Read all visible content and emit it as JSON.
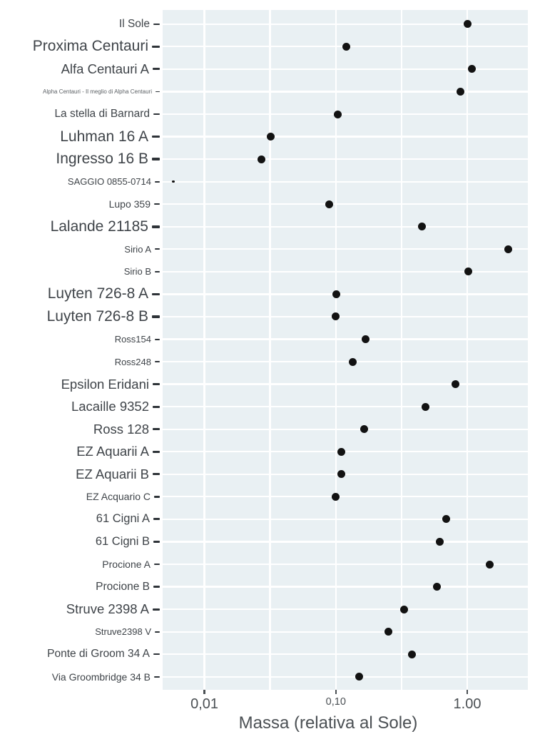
{
  "chart_data": {
    "type": "scatter",
    "variant": "horizontal-dot-plot",
    "title": "",
    "xlabel": "Massa (relativa al Sole)",
    "ylabel": "",
    "x_scale": "log10",
    "xlim": [
      0.0048,
      2.9
    ],
    "grid": true,
    "legend": false,
    "x_ticks": [
      {
        "label": "0,01",
        "value": 0.01,
        "label_size": "l"
      },
      {
        "label": "0,10",
        "value": 0.1,
        "label_size": "s"
      },
      {
        "label": "1.00",
        "value": 1.0,
        "label_size": "l"
      }
    ],
    "x_minor_grid_values": [
      0.0316,
      0.316
    ],
    "rows": [
      {
        "label": "Il Sole",
        "mass": 1.0,
        "label_size": "m",
        "point_size": "normal"
      },
      {
        "label": "Proxima Centauri",
        "mass": 0.12,
        "label_size": "xl",
        "point_size": "normal"
      },
      {
        "label": "Alfa Centauri A",
        "mass": 1.09,
        "label_size": "l",
        "point_size": "normal"
      },
      {
        "label": "Alpha Centauri - Il meglio di Alpha Centauri",
        "mass": 0.89,
        "label_size": "xs",
        "point_size": "normal"
      },
      {
        "label": "La stella di Barnard",
        "mass": 0.103,
        "label_size": "m",
        "point_size": "normal"
      },
      {
        "label": "Luhman 16 A",
        "mass": 0.032,
        "label_size": "xl",
        "point_size": "normal"
      },
      {
        "label": "Ingresso 16 B",
        "mass": 0.027,
        "label_size": "xl",
        "point_size": "normal"
      },
      {
        "label": "SAGGIO 0855-0714",
        "mass": 0.0058,
        "label_size": "s",
        "point_size": "small"
      },
      {
        "label": "Lupo 359",
        "mass": 0.089,
        "label_size": "sm",
        "point_size": "normal"
      },
      {
        "label": "Lalande 21185",
        "mass": 0.45,
        "label_size": "xl",
        "point_size": "normal"
      },
      {
        "label": "Sirio A",
        "mass": 2.05,
        "label_size": "s",
        "point_size": "normal"
      },
      {
        "label": "Sirio B",
        "mass": 1.02,
        "label_size": "s",
        "point_size": "normal"
      },
      {
        "label": "Luyten 726-8 A",
        "mass": 0.101,
        "label_size": "xl",
        "point_size": "normal"
      },
      {
        "label": "Luyten 726-8 B",
        "mass": 0.1,
        "label_size": "xl",
        "point_size": "normal"
      },
      {
        "label": "Ross154",
        "mass": 0.168,
        "label_size": "s",
        "point_size": "normal"
      },
      {
        "label": "Ross248",
        "mass": 0.134,
        "label_size": "s",
        "point_size": "normal"
      },
      {
        "label": "Epsilon Eridani",
        "mass": 0.81,
        "label_size": "l",
        "point_size": "normal"
      },
      {
        "label": "Lacaille 9352",
        "mass": 0.48,
        "label_size": "l",
        "point_size": "normal"
      },
      {
        "label": "Ross 128",
        "mass": 0.165,
        "label_size": "l",
        "point_size": "normal"
      },
      {
        "label": "EZ Aquarii A",
        "mass": 0.11,
        "label_size": "l",
        "point_size": "normal"
      },
      {
        "label": "EZ Aquarii B",
        "mass": 0.11,
        "label_size": "l",
        "point_size": "normal"
      },
      {
        "label": "EZ Acquario C",
        "mass": 0.1,
        "label_size": "sm",
        "point_size": "normal"
      },
      {
        "label": "61 Cigni A",
        "mass": 0.69,
        "label_size": "ml",
        "point_size": "normal"
      },
      {
        "label": "61 Cigni B",
        "mass": 0.62,
        "label_size": "ml",
        "point_size": "normal"
      },
      {
        "label": "Procione A",
        "mass": 1.49,
        "label_size": "sm",
        "point_size": "normal"
      },
      {
        "label": "Procione B",
        "mass": 0.59,
        "label_size": "m",
        "point_size": "normal"
      },
      {
        "label": "Struve 2398 A",
        "mass": 0.33,
        "label_size": "l",
        "point_size": "normal"
      },
      {
        "label": "Struve2398 V",
        "mass": 0.25,
        "label_size": "s",
        "point_size": "normal"
      },
      {
        "label": "Ponte di Groom 34 A",
        "mass": 0.38,
        "label_size": "m",
        "point_size": "normal"
      },
      {
        "label": "Via Groombridge 34 B",
        "mass": 0.15,
        "label_size": "sm",
        "point_size": "normal"
      }
    ]
  },
  "colors": {
    "panel_bg": "#e9f0f3",
    "gridline": "#ffffff",
    "point": "#121212",
    "y_label_text": "#3f4449",
    "y_tick_mark": "#2e3338",
    "x_tick_mark": "#4b5054",
    "x_tick_text": "#4b5054",
    "axis_title_text": "#4b5054"
  }
}
